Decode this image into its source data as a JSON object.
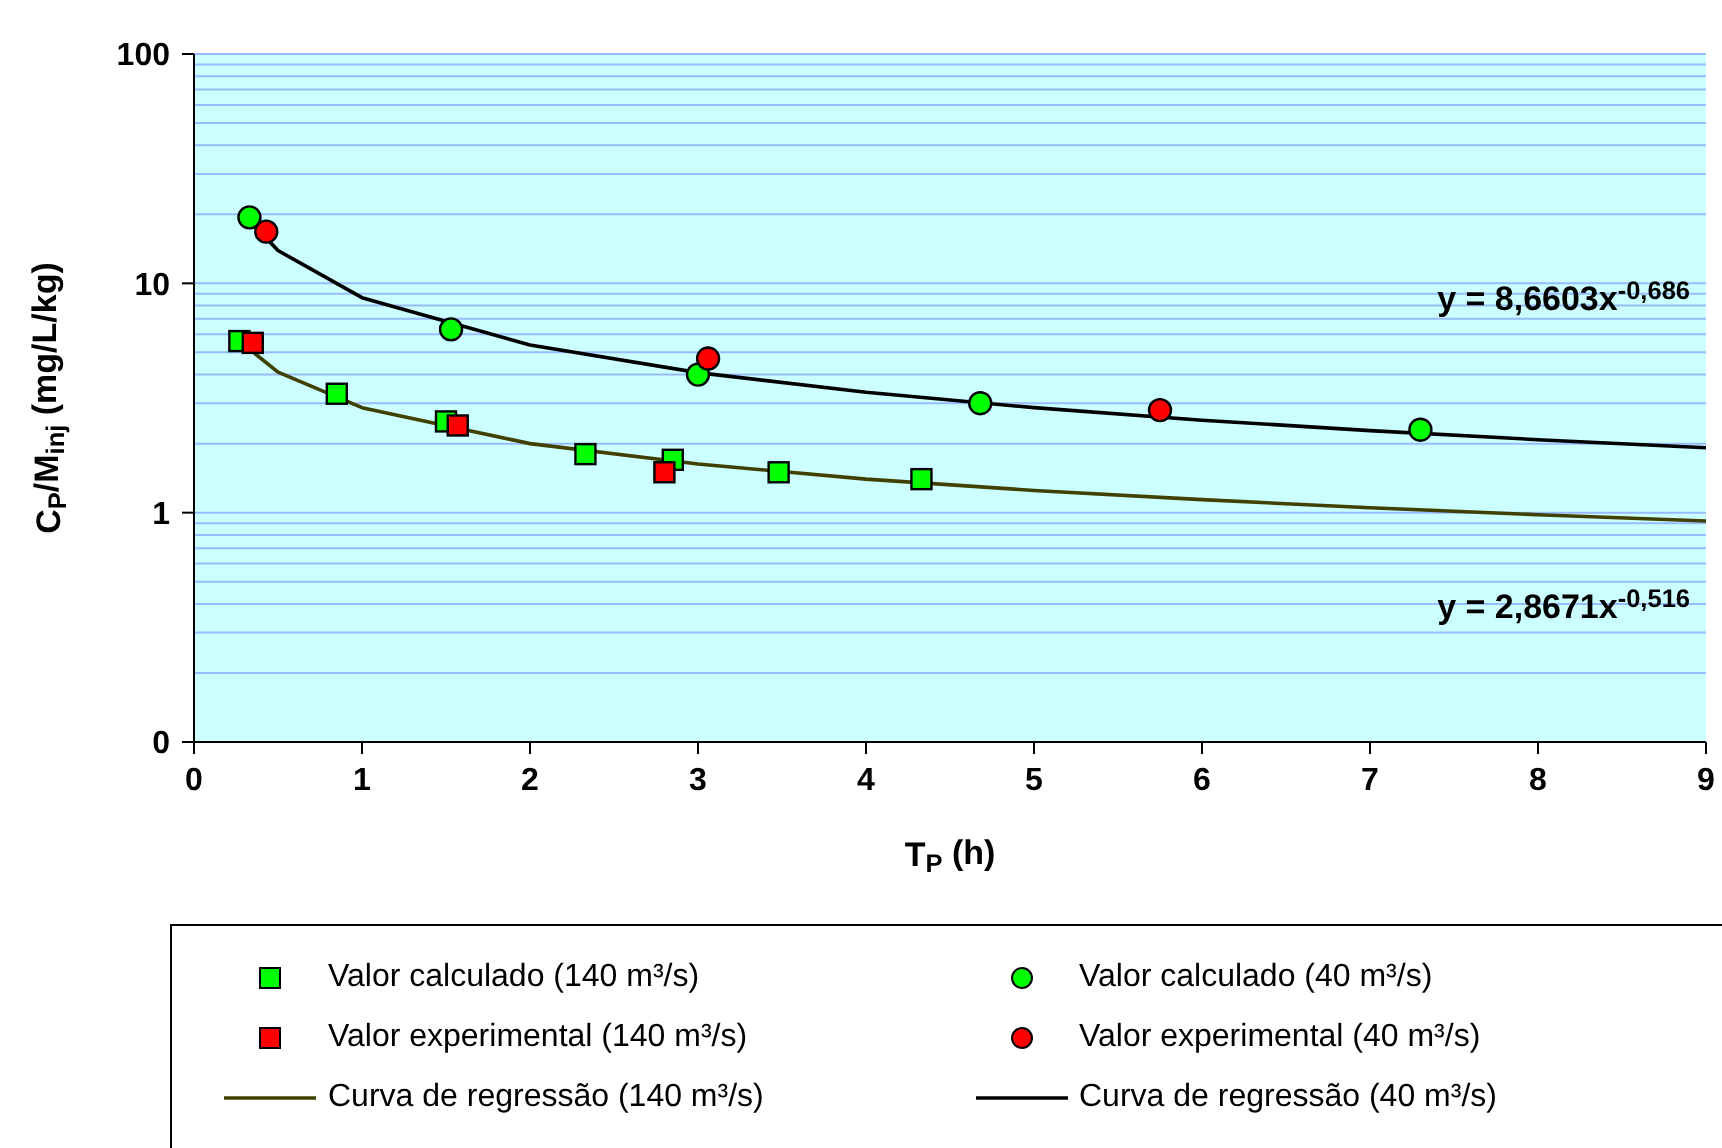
{
  "chart_data": {
    "type": "scatter",
    "xlabel": "T$_{P}$ (h)",
    "ylabel": "C$_{P}$/M$_{inj}$ (mg/L/kg)",
    "xlim": [
      0,
      9
    ],
    "xticks": [
      0,
      1,
      2,
      3,
      4,
      5,
      6,
      7,
      8,
      9
    ],
    "log": "y",
    "ylim": [
      0.1,
      100
    ],
    "yticks": [
      {
        "value": 0.1,
        "label": "0"
      },
      {
        "value": 0.2,
        "label": null
      },
      {
        "value": 0.3,
        "label": null
      },
      {
        "value": 0.4,
        "label": null
      },
      {
        "value": 0.5,
        "label": null
      },
      {
        "value": 0.6,
        "label": null
      },
      {
        "value": 0.7,
        "label": null
      },
      {
        "value": 0.8,
        "label": null
      },
      {
        "value": 0.9,
        "label": null
      },
      1,
      {
        "value": 2,
        "label": null
      },
      {
        "value": 3,
        "label": null
      },
      {
        "value": 4,
        "label": null
      },
      {
        "value": 5,
        "label": null
      },
      {
        "value": 6,
        "label": null
      },
      {
        "value": 7,
        "label": null
      },
      {
        "value": 8,
        "label": null
      },
      {
        "value": 9,
        "label": null
      },
      10,
      {
        "value": 20,
        "label": null
      },
      {
        "value": 30,
        "label": null
      },
      {
        "value": 40,
        "label": null
      },
      {
        "value": 50,
        "label": null
      },
      {
        "value": 60,
        "label": null
      },
      {
        "value": 70,
        "label": null
      },
      {
        "value": 80,
        "label": null
      },
      {
        "value": 90,
        "label": null
      },
      100
    ],
    "grid": "y",
    "legend": "bottom",
    "series": [
      {
        "name": "Valor calculado (140 m³/s)",
        "marker": "square",
        "color": "#00ff00",
        "x": [
          0.27,
          0.85,
          1.5,
          2.33,
          2.85,
          3.48,
          4.33
        ],
        "values": [
          5.6,
          3.3,
          2.5,
          1.8,
          1.7,
          1.5,
          1.4
        ]
      },
      {
        "name": "Valor calculado (40 m³/s)",
        "marker": "circle",
        "color": "#00ff00",
        "x": [
          0.33,
          1.53,
          3.0,
          4.68,
          7.3
        ],
        "values": [
          19.4,
          6.3,
          4.0,
          3.0,
          2.3
        ]
      },
      {
        "name": "Valor experimental (140 m³/s)",
        "marker": "square",
        "color": "#ff0000",
        "x": [
          0.35,
          1.57,
          2.8
        ],
        "values": [
          5.5,
          2.4,
          1.5
        ]
      },
      {
        "name": "Valor experimental (40 m³/s)",
        "marker": "circle",
        "color": "#ff0000",
        "x": [
          0.43,
          3.06,
          5.75
        ],
        "values": [
          16.8,
          4.7,
          2.8
        ]
      },
      {
        "name": "Curva de regressão (140 m³/s)",
        "type": "line",
        "marker": "none",
        "line_style": "solid",
        "color": "#404000",
        "x": [
          0.27,
          0.5,
          1,
          2,
          3,
          4,
          5,
          6,
          7,
          8,
          9
        ],
        "values": [
          5.6,
          4.1,
          2.87,
          2.0,
          1.63,
          1.4,
          1.25,
          1.14,
          1.05,
          0.98,
          0.92
        ]
      },
      {
        "name": "Curva de regressão (40 m³/s)",
        "type": "line",
        "marker": "none",
        "line_style": "solid",
        "color": "#000000",
        "x": [
          0.3,
          0.5,
          1,
          2,
          3,
          4,
          5,
          6,
          7,
          8,
          9
        ],
        "values": [
          19.8,
          13.9,
          8.66,
          5.38,
          4.08,
          3.35,
          2.87,
          2.53,
          2.28,
          2.08,
          1.92
        ]
      }
    ],
    "annotations": [
      "y = 8,6603x$^{-0,686}$",
      "y = 2,8671x$^{-0,516}$"
    ]
  }
}
